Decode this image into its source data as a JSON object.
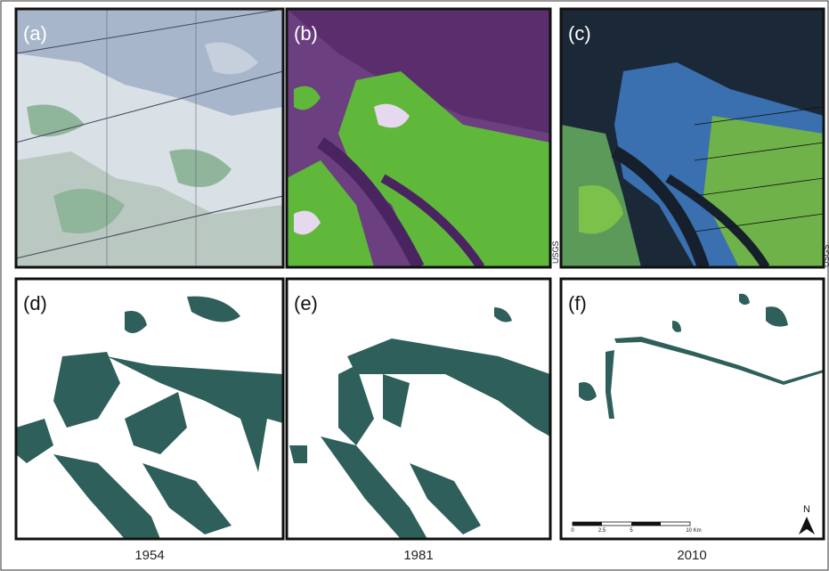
{
  "panels": [
    {
      "label": "(a)"
    },
    {
      "label": "(b)"
    },
    {
      "label": "(c)"
    },
    {
      "label": "(d)"
    },
    {
      "label": "(e)"
    },
    {
      "label": "(f)"
    }
  ],
  "credits": [
    "USGS",
    "USGS"
  ],
  "years": [
    "1954",
    "1981",
    "2010"
  ],
  "scale_bar": {
    "ticks": [
      "0",
      "2.5",
      "5",
      "10 Km"
    ]
  },
  "north": "N"
}
